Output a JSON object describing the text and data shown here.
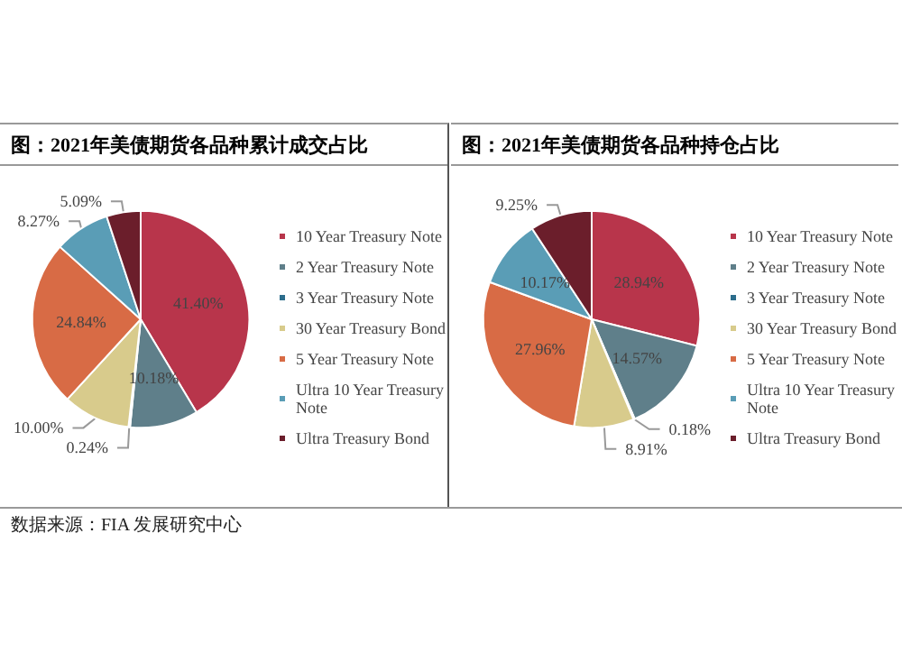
{
  "chart_data": [
    {
      "type": "pie",
      "title": "图：2021年美债期货各品种累计成交占比",
      "categories": [
        "10 Year Treasury Note",
        "2 Year Treasury Note",
        "3 Year Treasury Note",
        "30 Year Treasury Bond",
        "5 Year Treasury Note",
        "Ultra 10 Year Treasury Note",
        "Ultra Treasury Bond"
      ],
      "values": [
        41.4,
        10.18,
        0.24,
        10.0,
        24.84,
        8.27,
        5.09
      ],
      "value_labels": [
        "41.40%",
        "10.18%",
        "0.24%",
        "10.00%",
        "24.84%",
        "8.27%",
        "5.09%"
      ],
      "colors": [
        "#b8354b",
        "#5f7f8a",
        "#2c6d8c",
        "#d8cb8c",
        "#d86b45",
        "#5a9db6",
        "#6b1e2b"
      ],
      "legend": "right",
      "annotations": [
        "数据来源：FIA 发展研究中心"
      ]
    },
    {
      "type": "pie",
      "title": "图：2021年美债期货各品种持仓占比",
      "categories": [
        "10 Year Treasury Note",
        "2 Year Treasury Note",
        "3 Year Treasury Note",
        "30 Year Treasury Bond",
        "5 Year Treasury Note",
        "Ultra 10 Year Treasury Note",
        "Ultra Treasury Bond"
      ],
      "values": [
        28.94,
        14.57,
        0.18,
        8.91,
        27.96,
        10.17,
        9.25
      ],
      "value_labels": [
        "28.94%",
        "14.57%",
        "0.18%",
        "8.91%",
        "27.96%",
        "10.17%",
        "9.25%"
      ],
      "colors": [
        "#b8354b",
        "#5f7f8a",
        "#2c6d8c",
        "#d8cb8c",
        "#d86b45",
        "#5a9db6",
        "#6b1e2b"
      ],
      "legend": "right"
    }
  ]
}
